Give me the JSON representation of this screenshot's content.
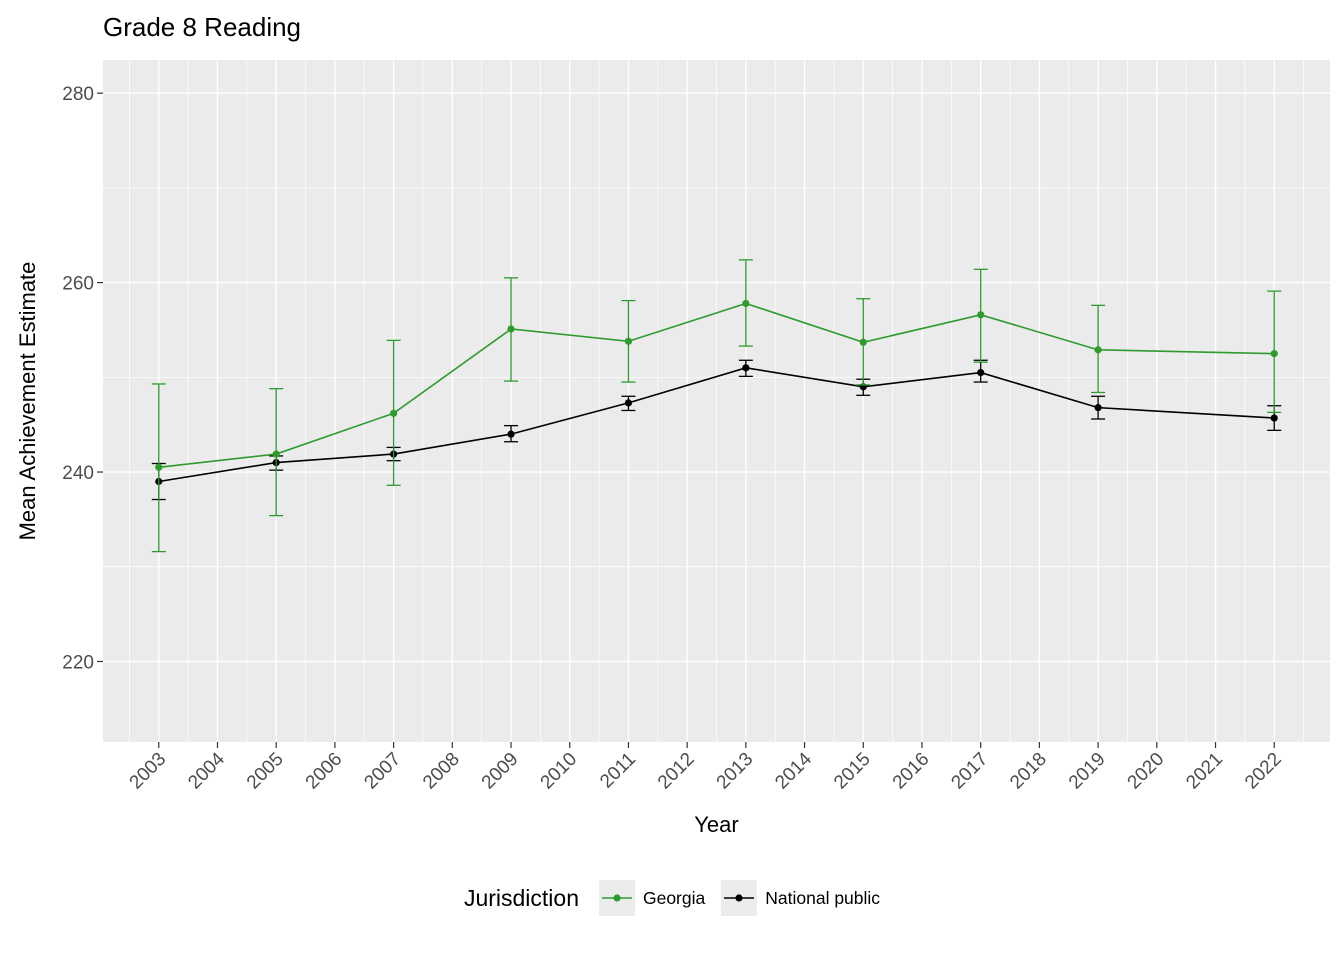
{
  "chart_data": {
    "type": "line",
    "title": "Grade 8 Reading",
    "xlabel": "Year",
    "ylabel": "Mean Achievement Estimate",
    "legend_title": "Jurisdiction",
    "legend_position": "bottom",
    "grid": true,
    "x_ticks": [
      2003,
      2004,
      2005,
      2006,
      2007,
      2008,
      2009,
      2010,
      2011,
      2012,
      2013,
      2014,
      2015,
      2016,
      2017,
      2018,
      2019,
      2020,
      2021,
      2022
    ],
    "y_ticks": [
      220,
      240,
      260,
      280
    ],
    "xlim": [
      2002.05,
      2022.95
    ],
    "ylim": [
      211.5,
      283.5
    ],
    "colors": {
      "panel_background": "#EBEBEB",
      "gridline": "#FFFFFF",
      "tick_label": "#4D4D4D",
      "axis_label": "#000000",
      "tick_mark": "#333333",
      "legend_key_background": "#ECECEC"
    },
    "series": [
      {
        "name": "Georgia",
        "color": "#2E9B2E",
        "x": [
          2003,
          2005,
          2007,
          2009,
          2011,
          2013,
          2015,
          2017,
          2019,
          2022
        ],
        "y": [
          240.5,
          241.9,
          246.2,
          255.1,
          253.8,
          257.8,
          253.7,
          256.6,
          252.9,
          252.5
        ],
        "y_lower": [
          231.6,
          235.4,
          238.6,
          249.6,
          249.5,
          253.3,
          249.2,
          251.6,
          248.4,
          246.3
        ],
        "y_upper": [
          249.3,
          248.8,
          253.9,
          260.5,
          258.1,
          262.4,
          258.3,
          261.4,
          257.6,
          259.1
        ]
      },
      {
        "name": "National public",
        "color": "#000000",
        "x": [
          2003,
          2005,
          2007,
          2009,
          2011,
          2013,
          2015,
          2017,
          2019,
          2022
        ],
        "y": [
          239.0,
          241.0,
          241.9,
          244.0,
          247.3,
          251.0,
          249.0,
          250.5,
          246.8,
          245.7
        ],
        "y_lower": [
          237.1,
          240.2,
          241.2,
          243.2,
          246.5,
          250.1,
          248.1,
          249.5,
          245.6,
          244.4
        ],
        "y_upper": [
          240.9,
          241.7,
          242.6,
          244.9,
          248.0,
          251.8,
          249.8,
          251.8,
          248.0,
          247.0
        ]
      }
    ]
  }
}
